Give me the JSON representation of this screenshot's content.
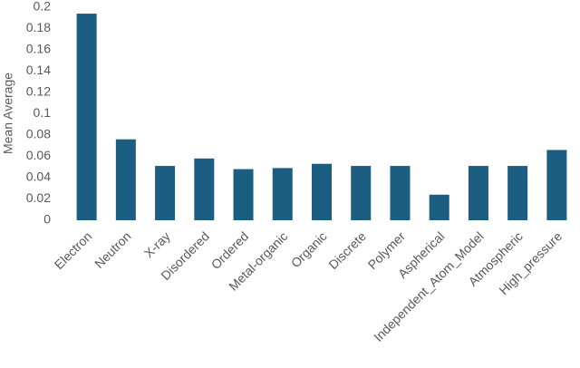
{
  "chart_data": {
    "type": "bar",
    "y_label": "Mean Average",
    "categories": [
      "Electron",
      "Neutron",
      "X-ray",
      "Disordered",
      "Ordered",
      "Metal-organic",
      "Organic",
      "Discrete",
      "Polymer",
      "Aspherical",
      "Independent_Atom_Model",
      "Atmospheric",
      "High_pressure"
    ],
    "values": [
      0.194,
      0.076,
      0.051,
      0.058,
      0.048,
      0.049,
      0.053,
      0.051,
      0.051,
      0.024,
      0.051,
      0.051,
      0.066
    ],
    "color": "#1b5e82",
    "ylim": [
      0,
      0.2
    ],
    "yticks": [
      0,
      0.02,
      0.04,
      0.06,
      0.08,
      0.1,
      0.12,
      0.14,
      0.16,
      0.18,
      0.2
    ],
    "grid": false
  }
}
